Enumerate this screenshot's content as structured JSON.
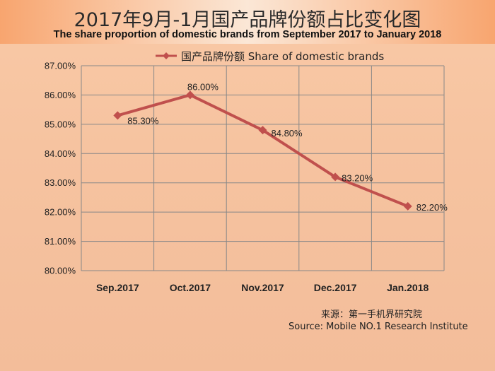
{
  "title_cn": "2017年9月-1月国产品牌份额占比变化图",
  "title_en": "The share proportion of domestic brands from September 2017 to January 2018",
  "source_cn": "来源：第一手机界研究院",
  "source_en": "Source: Mobile NO.1 Research Institute",
  "colors": {
    "line": "#c0504d",
    "marker": "#c0504d",
    "grid": "#888888"
  },
  "chart_data": {
    "type": "line",
    "categories": [
      "Sep.2017",
      "Oct.2017",
      "Nov.2017",
      "Dec.2017",
      "Jan.2018"
    ],
    "series": [
      {
        "name": "国产品牌份额  Share of domestic brands",
        "values": [
          85.3,
          86.0,
          84.8,
          83.2,
          82.2
        ],
        "labels": [
          "85.30%",
          "86.00%",
          "84.80%",
          "83.20%",
          "82.20%"
        ]
      }
    ],
    "ylim": [
      80,
      87
    ],
    "yticks": [
      "80.00%",
      "81.00%",
      "82.00%",
      "83.00%",
      "84.00%",
      "85.00%",
      "86.00%",
      "87.00%"
    ],
    "grid": true,
    "legend_position": "top",
    "marker": "diamond"
  }
}
